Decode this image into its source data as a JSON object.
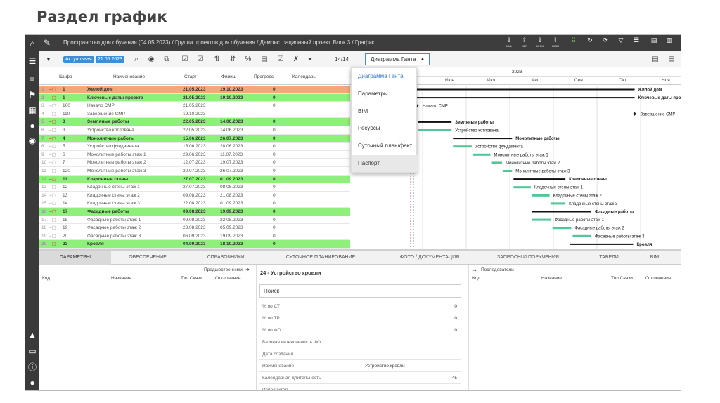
{
  "slide_title": "Раздел график",
  "topbar": {
    "path": "Пространство для обучения (04.05.2023) / Группа проектов для обучения / Демонстрационный проект. Блок 3 / График",
    "export_labels": [
      "XML",
      "XER",
      "XLSX",
      "XLSX"
    ]
  },
  "toolbar": {
    "status_badge": "Актуальная",
    "date_badge": "21.05.2023",
    "filter_count": "14/14",
    "view_select": "Диаграмма Ганта"
  },
  "right_toolbar": {
    "export_labels": [
      "XLSX",
      "PDF"
    ]
  },
  "view_menu": [
    "Диаграмма Ганта",
    "Параметры",
    "BIM",
    "Ресурсы",
    "Суточный план/факт",
    "Паспорт"
  ],
  "grid": {
    "headers": [
      "Шифр",
      "Наименование",
      "Старт",
      "Финиш",
      "Прогресс",
      "Календарь"
    ],
    "rows": [
      {
        "n": "1",
        "code": "1",
        "name": "Жилой дом",
        "start": "21.05.2023",
        "finish": "19.10.2023",
        "progress": "0",
        "type": "orange"
      },
      {
        "n": "2",
        "code": "1",
        "name": "Ключевые даты проекта",
        "start": "21.05.2023",
        "finish": "19.10.2023",
        "progress": "0",
        "type": "green"
      },
      {
        "n": "3",
        "code": "100",
        "name": "Начало СМР",
        "start": "21.05.2023",
        "finish": "",
        "progress": "0",
        "type": "normal"
      },
      {
        "n": "4",
        "code": "110",
        "name": "Завершение СМР",
        "start": "19.10.2023",
        "finish": "",
        "progress": "",
        "type": "normal"
      },
      {
        "n": "5",
        "code": "3",
        "name": "Земляные работы",
        "start": "22.05.2023",
        "finish": "14.06.2023",
        "progress": "0",
        "type": "green"
      },
      {
        "n": "6",
        "code": "3",
        "name": "Устройство котлована",
        "start": "22.05.2023",
        "finish": "14.06.2023",
        "progress": "0",
        "type": "normal"
      },
      {
        "n": "7",
        "code": "4",
        "name": "Монолитные работы",
        "start": "15.06.2023",
        "finish": "26.07.2023",
        "progress": "0",
        "type": "green"
      },
      {
        "n": "8",
        "code": "5",
        "name": "Устройство фундамента",
        "start": "15.06.2023",
        "finish": "28.06.2023",
        "progress": "0",
        "type": "normal"
      },
      {
        "n": "9",
        "code": "6",
        "name": "Монолитные работы этаж 1",
        "start": "29.06.2023",
        "finish": "11.07.2023",
        "progress": "0",
        "type": "normal"
      },
      {
        "n": "10",
        "code": "7",
        "name": "Монолитные работы этаж 2",
        "start": "12.07.2023",
        "finish": "19.07.2023",
        "progress": "0",
        "type": "normal"
      },
      {
        "n": "11",
        "code": "120",
        "name": "Монолитные работы этаж 3",
        "start": "20.07.2023",
        "finish": "26.07.2023",
        "progress": "0",
        "type": "normal"
      },
      {
        "n": "12",
        "code": "11",
        "name": "Кладочные стены",
        "start": "27.07.2023",
        "finish": "01.09.2023",
        "progress": "0",
        "type": "green"
      },
      {
        "n": "13",
        "code": "12",
        "name": "Кладочные стены этаж 1",
        "start": "27.07.2023",
        "finish": "08.08.2023",
        "progress": "0",
        "type": "normal"
      },
      {
        "n": "14",
        "code": "13",
        "name": "Кладочные стены этаж 2",
        "start": "09.08.2023",
        "finish": "21.08.2023",
        "progress": "0",
        "type": "normal"
      },
      {
        "n": "15",
        "code": "14",
        "name": "Кладочные стены этаж 3",
        "start": "22.08.2023",
        "finish": "01.09.2023",
        "progress": "0",
        "type": "normal"
      },
      {
        "n": "16",
        "code": "17",
        "name": "Фасадные работы",
        "start": "09.08.2023",
        "finish": "19.09.2023",
        "progress": "0",
        "type": "green"
      },
      {
        "n": "17",
        "code": "18",
        "name": "Фасадные работы этаж 1",
        "start": "09.08.2023",
        "finish": "22.08.2023",
        "progress": "0",
        "type": "normal"
      },
      {
        "n": "18",
        "code": "19",
        "name": "Фасадные работы этаж 2",
        "start": "23.08.2023",
        "finish": "05.09.2023",
        "progress": "0",
        "type": "normal"
      },
      {
        "n": "19",
        "code": "20",
        "name": "Фасадные работы этаж 3",
        "start": "06.09.2023",
        "finish": "19.09.2023",
        "progress": "0",
        "type": "normal"
      },
      {
        "n": "20",
        "code": "23",
        "name": "Кровля",
        "start": "04.09.2023",
        "finish": "18.10.2023",
        "progress": "0",
        "type": "green"
      }
    ]
  },
  "gantt": {
    "year": "2023",
    "months": [
      "Июн",
      "Июл",
      "Авг",
      "Сен",
      "Окт",
      "Ноя"
    ],
    "labels": [
      {
        "text": "Жилой дом",
        "row": 0
      },
      {
        "text": "Ключевые даты проекта",
        "row": 1
      },
      {
        "text": "Начало СМР",
        "row": 2
      },
      {
        "text": "Завершение СМР",
        "row": 3
      },
      {
        "text": "Земляные работы",
        "row": 4
      },
      {
        "text": "Устройство котлована",
        "row": 5
      },
      {
        "text": "Монолитные работы",
        "row": 6
      },
      {
        "text": "Устройство фундамента",
        "row": 7
      },
      {
        "text": "Монолитные работы этаж 1",
        "row": 8
      },
      {
        "text": "Монолитные работы этаж 2",
        "row": 9
      },
      {
        "text": "Монолитные работы этаж 3",
        "row": 10
      },
      {
        "text": "Кладочные стены",
        "row": 11
      },
      {
        "text": "Кладочные стены этаж 1",
        "row": 12
      },
      {
        "text": "Кладочные стены этаж 2",
        "row": 13
      },
      {
        "text": "Кладочные стены этаж 3",
        "row": 14
      },
      {
        "text": "Фасадные работы",
        "row": 15
      },
      {
        "text": "Фасадные работы этаж 1",
        "row": 16
      },
      {
        "text": "Фасадные работы этаж 2",
        "row": 17
      },
      {
        "text": "Фасадные работы этаж 3",
        "row": 18
      },
      {
        "text": "Кровля",
        "row": 19
      }
    ]
  },
  "tabs": [
    "ПАРАМЕТРЫ",
    "ОБЕСПЕЧЕНИЕ",
    "СПРАВОЧНИКИ",
    "СУТОЧНОЕ ПЛАНИРОВАНИЕ",
    "ФОТО / ДОКУМЕНТАЦИЯ",
    "ЗАПРОСЫ И ПОРУЧЕНИЯ",
    "ТАБЕЛИ",
    "BIM"
  ],
  "predecessors": {
    "title": "Предшественники",
    "cols": [
      "Код",
      "Название",
      "Тип Связи",
      "Отклонение"
    ]
  },
  "details": {
    "title": "24 - Устройство кровли",
    "search": "Поиск",
    "props": [
      {
        "k": "% по СТ",
        "v": "0"
      },
      {
        "k": "% по ТР",
        "v": "0"
      },
      {
        "k": "% по ФО",
        "v": "0"
      },
      {
        "k": "Базовая интенсивность ФО",
        "v": ""
      },
      {
        "k": "Дата создания",
        "v": ""
      },
      {
        "k": "Наименование",
        "v": "Устройство кровли"
      },
      {
        "k": "Календарная длительность",
        "v": "45"
      },
      {
        "k": "Исполнитель",
        "v": ""
      }
    ]
  },
  "successors": {
    "title": "Последователи",
    "cols": [
      "Код",
      "Название",
      "Тип Связи",
      "Отклонение"
    ]
  },
  "colors": {
    "green_row": "#8ef07a",
    "orange_row": "#f3a77a",
    "accent": "#3d8fd8",
    "bar": "#4fc79a"
  }
}
